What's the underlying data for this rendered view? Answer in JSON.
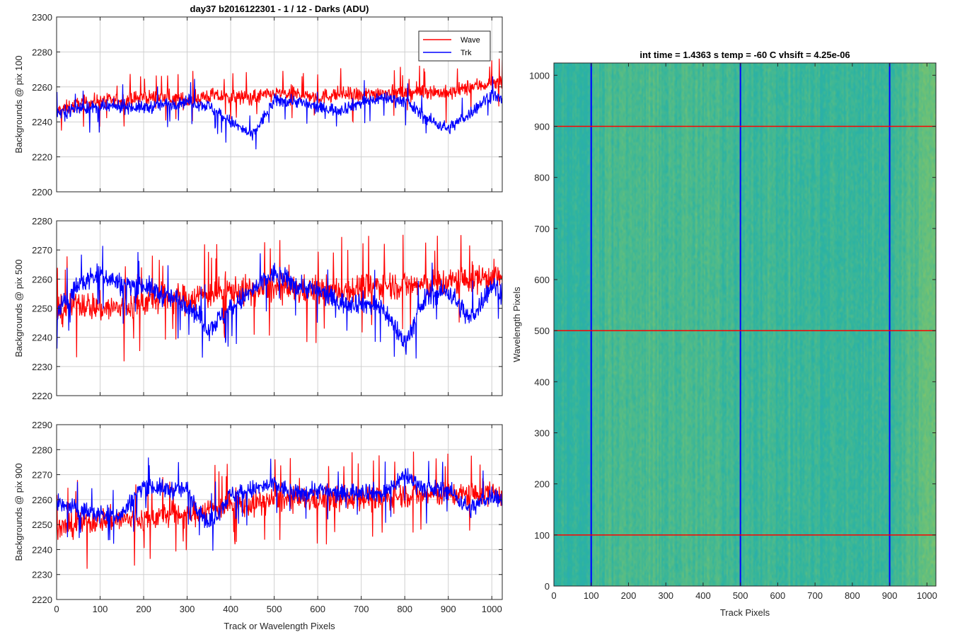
{
  "figure": {
    "background": "#ffffff"
  },
  "chart_data": [
    {
      "type": "line",
      "title": "day37 b2016122301 - 1 / 12 - Darks (ADU)",
      "xlabel": "",
      "ylabel": "Backgrounds @ pix 100",
      "xlim": [
        0,
        1024
      ],
      "ylim": [
        2200,
        2300
      ],
      "xticks": [
        0,
        100,
        200,
        300,
        400,
        500,
        600,
        700,
        800,
        900,
        1000
      ],
      "xticklabels": [
        "",
        "",
        "",
        "",
        "",
        "",
        "",
        "",
        "",
        "",
        ""
      ],
      "yticks": [
        2200,
        2220,
        2240,
        2260,
        2280,
        2300
      ],
      "yticklabels": [
        "2200",
        "2220",
        "2240",
        "2260",
        "2280",
        "2300"
      ],
      "grid": true,
      "legend": {
        "placement": "top-right",
        "entries": [
          "Wave",
          "Trk"
        ]
      },
      "x": [
        0,
        50,
        100,
        150,
        200,
        250,
        300,
        350,
        400,
        450,
        500,
        550,
        600,
        650,
        700,
        750,
        800,
        850,
        900,
        950,
        1000,
        1024
      ],
      "series": [
        {
          "name": "Wave",
          "color": "#ff0000",
          "values": [
            2246,
            2250,
            2252,
            2252,
            2254,
            2254,
            2252,
            2255,
            2254,
            2254,
            2256,
            2256,
            2254,
            2256,
            2255,
            2257,
            2256,
            2258,
            2256,
            2260,
            2262,
            2262
          ],
          "noise": 7
        },
        {
          "name": "Trk",
          "color": "#0000ff",
          "values": [
            2245,
            2248,
            2248,
            2249,
            2248,
            2250,
            2252,
            2249,
            2240,
            2232,
            2252,
            2252,
            2248,
            2247,
            2251,
            2254,
            2252,
            2242,
            2236,
            2245,
            2256,
            2252
          ],
          "noise": 6
        }
      ]
    },
    {
      "type": "line",
      "title": "",
      "xlabel": "",
      "ylabel": "Backgrounds @ pix 500",
      "xlim": [
        0,
        1024
      ],
      "ylim": [
        2220,
        2280
      ],
      "xticks": [
        0,
        100,
        200,
        300,
        400,
        500,
        600,
        700,
        800,
        900,
        1000
      ],
      "xticklabels": [
        "",
        "",
        "",
        "",
        "",
        "",
        "",
        "",
        "",
        "",
        ""
      ],
      "yticks": [
        2220,
        2230,
        2240,
        2250,
        2260,
        2270,
        2280
      ],
      "yticklabels": [
        "2220",
        "2230",
        "2240",
        "2250",
        "2260",
        "2270",
        "2280"
      ],
      "grid": true,
      "x": [
        0,
        50,
        100,
        150,
        200,
        250,
        300,
        350,
        400,
        450,
        500,
        550,
        600,
        650,
        700,
        750,
        800,
        850,
        900,
        950,
        1000,
        1024
      ],
      "series": [
        {
          "name": "Wave",
          "color": "#ff0000",
          "values": [
            2248,
            2252,
            2250,
            2250,
            2252,
            2254,
            2253,
            2255,
            2256,
            2256,
            2257,
            2256,
            2256,
            2256,
            2257,
            2258,
            2258,
            2258,
            2259,
            2260,
            2261,
            2260
          ],
          "noise": 8
        },
        {
          "name": "Trk",
          "color": "#0000ff",
          "values": [
            2248,
            2258,
            2262,
            2258,
            2258,
            2254,
            2252,
            2243,
            2250,
            2256,
            2262,
            2258,
            2256,
            2252,
            2252,
            2250,
            2238,
            2254,
            2256,
            2246,
            2258,
            2256
          ],
          "noise": 6
        }
      ]
    },
    {
      "type": "line",
      "title": "",
      "xlabel": "Track or Wavelength Pixels",
      "ylabel": "Backgrounds @ pix 900",
      "xlim": [
        0,
        1024
      ],
      "ylim": [
        2220,
        2290
      ],
      "xticks": [
        0,
        100,
        200,
        300,
        400,
        500,
        600,
        700,
        800,
        900,
        1000
      ],
      "xticklabels": [
        "0",
        "100",
        "200",
        "300",
        "400",
        "500",
        "600",
        "700",
        "800",
        "900",
        "1000"
      ],
      "yticks": [
        2220,
        2230,
        2240,
        2250,
        2260,
        2270,
        2280,
        2290
      ],
      "yticklabels": [
        "2220",
        "2230",
        "2240",
        "2250",
        "2260",
        "2270",
        "2280",
        "2290"
      ],
      "grid": true,
      "x": [
        0,
        50,
        100,
        150,
        200,
        250,
        300,
        350,
        400,
        450,
        500,
        550,
        600,
        650,
        700,
        750,
        800,
        850,
        900,
        950,
        1000,
        1024
      ],
      "series": [
        {
          "name": "Wave",
          "color": "#ff0000",
          "values": [
            2248,
            2250,
            2252,
            2252,
            2252,
            2254,
            2254,
            2256,
            2258,
            2258,
            2260,
            2260,
            2260,
            2260,
            2261,
            2260,
            2262,
            2262,
            2262,
            2262,
            2263,
            2262
          ],
          "noise": 8
        },
        {
          "name": "Trk",
          "color": "#0000ff",
          "values": [
            2258,
            2256,
            2254,
            2254,
            2266,
            2264,
            2264,
            2250,
            2262,
            2264,
            2266,
            2262,
            2264,
            2262,
            2264,
            2262,
            2270,
            2264,
            2264,
            2256,
            2262,
            2260
          ],
          "noise": 6
        }
      ]
    },
    {
      "type": "heatmap",
      "title": "int time = 1.4363 s    temp = -60 C    vhsift = 4.25e-06",
      "xlabel": "Track Pixels",
      "ylabel": "Wavelength Pixels",
      "xlim": [
        0,
        1024
      ],
      "ylim": [
        0,
        1024
      ],
      "xticks": [
        0,
        100,
        200,
        300,
        400,
        500,
        600,
        700,
        800,
        900,
        1000
      ],
      "xticklabels": [
        "0",
        "100",
        "200",
        "300",
        "400",
        "500",
        "600",
        "700",
        "800",
        "900",
        "1000"
      ],
      "yticks": [
        0,
        100,
        200,
        300,
        400,
        500,
        600,
        700,
        800,
        900,
        1000
      ],
      "yticklabels": [
        "0",
        "100",
        "200",
        "300",
        "400",
        "500",
        "600",
        "700",
        "800",
        "900",
        "1000"
      ],
      "colormap": "parula",
      "colorscale_anchors": [
        "#2a9fcf",
        "#2bb3a3",
        "#7cc46d",
        "#c8c24a"
      ],
      "vertical_marker_lines": {
        "color": "#0000ff",
        "x": [
          100,
          500,
          900
        ]
      },
      "horizontal_marker_lines": {
        "color": "#ff0000",
        "y": [
          100,
          500,
          900
        ]
      }
    }
  ]
}
